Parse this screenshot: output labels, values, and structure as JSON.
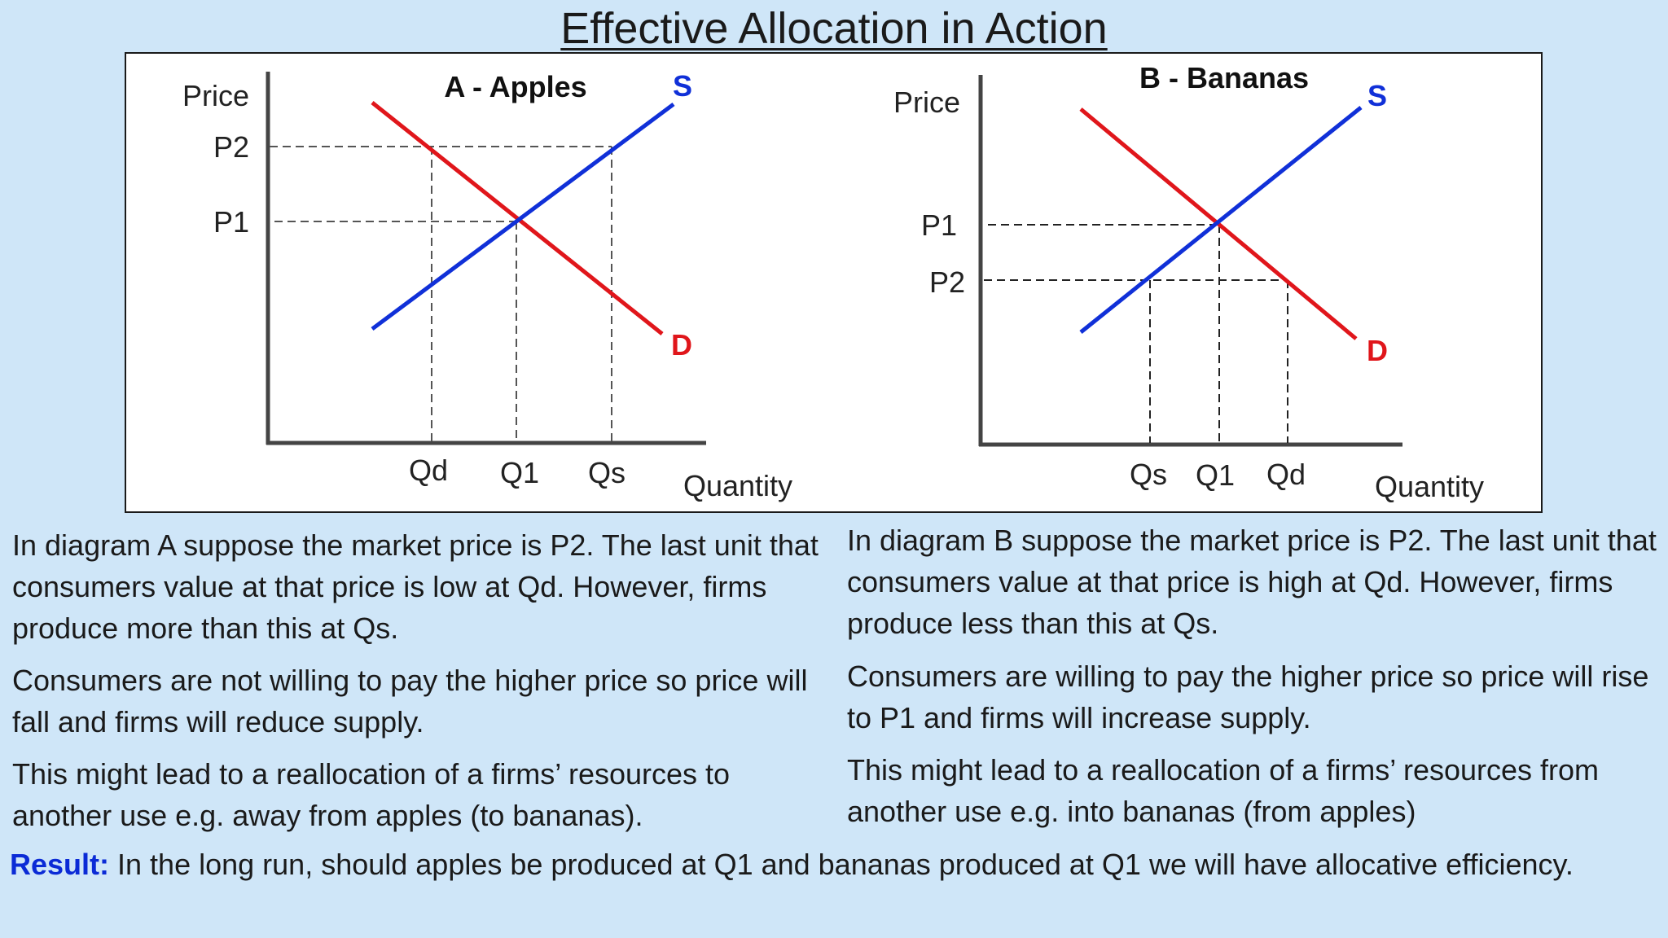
{
  "title": "Effective Allocation in Action",
  "colors": {
    "supply": "#1030d8",
    "demand": "#e0161b",
    "axis": "#444444",
    "background": "#cfe6f8",
    "result_label": "#0b2bd6"
  },
  "diagrams": [
    {
      "id": "A",
      "title": "A - Apples",
      "y_axis_label": "Price",
      "x_axis_label": "Quantity",
      "supply_label": "S",
      "demand_label": "D",
      "price_labels": {
        "p2": "P2",
        "p1": "P1"
      },
      "quantity_labels": {
        "qd": "Qd",
        "q1": "Q1",
        "qs": "Qs"
      }
    },
    {
      "id": "B",
      "title": "B - Bananas",
      "y_axis_label": "Price",
      "x_axis_label": "Quantity",
      "supply_label": "S",
      "demand_label": "D",
      "price_labels": {
        "p1": "P1",
        "p2": "P2"
      },
      "quantity_labels": {
        "qs": "Qs",
        "q1": "Q1",
        "qd": "Qd"
      }
    }
  ],
  "text": {
    "left": [
      "In diagram A suppose the market price is P2. The last unit that consumers value at that price is low at Qd. However, firms produce more than this at Qs.",
      "Consumers are not willing to pay the higher price so price will fall and firms will reduce supply.",
      "This might lead to a reallocation of a firms’ resources to another use e.g. away from apples (to bananas)."
    ],
    "right": [
      "In diagram B suppose the market price is P2. The last unit that consumers value at that price is high at Qd. However, firms produce less than this at Qs.",
      "Consumers are willing to pay the higher price so price will rise to P1 and firms will increase supply.",
      "This might lead to a reallocation of a firms’ resources from another use e.g. into bananas (from apples)"
    ]
  },
  "result": {
    "label": "Result:",
    "text": "In the long run, should apples be produced at Q1 and bananas produced at Q1 we will have allocative efficiency."
  }
}
